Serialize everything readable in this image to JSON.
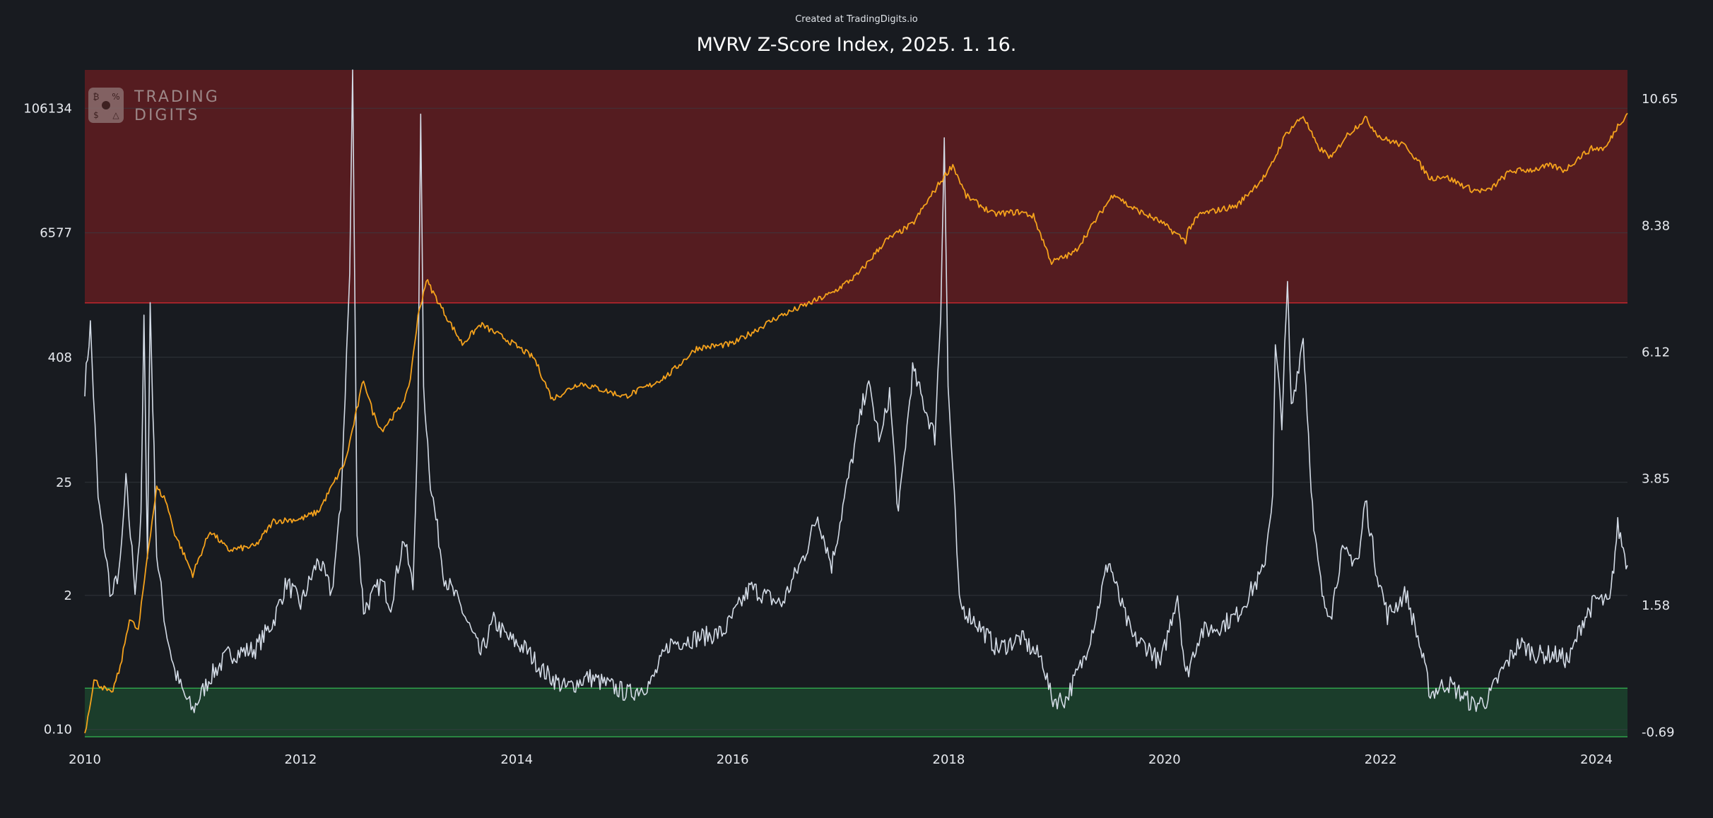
{
  "header": {
    "credit": "Created at TradingDigits.io",
    "title": "MVRV Z-Score Index, 2025. 1. 16."
  },
  "watermark": {
    "line1": "TRADING",
    "line2": "DIGITS",
    "icon_glyphs": [
      "₿",
      "%",
      "$",
      "△"
    ]
  },
  "colors": {
    "background": "#181b20",
    "price_line": "#f5a21c",
    "zscore_line": "#d3dbe6",
    "overvalued_zone": "#551c20",
    "overvalued_border": "#c2262d",
    "undervalued_zone": "#1b3d2b",
    "undervalued_border": "#2fa24a",
    "grid": "#3a3e45"
  },
  "chart_data": {
    "type": "line",
    "x_range": [
      "2010-01-01",
      "2024-04-15"
    ],
    "x_ticks": [
      "2010",
      "2012",
      "2014",
      "2016",
      "2018",
      "2020",
      "2022",
      "2024"
    ],
    "y_left": {
      "scale": "log",
      "ticks": [
        "106134",
        "6577",
        "408",
        "25",
        "2",
        "0.10"
      ],
      "tick_values": [
        106134,
        6577,
        408,
        25,
        2,
        0.1
      ],
      "range": [
        0.085,
        250000
      ]
    },
    "y_right": {
      "scale": "linear",
      "ticks": [
        "10.65",
        "8.38",
        "6.12",
        "3.85",
        "1.58",
        "-0.69"
      ],
      "tick_values": [
        10.65,
        8.38,
        6.12,
        3.85,
        1.58,
        -0.69
      ],
      "range": [
        -0.77,
        11.17
      ]
    },
    "zones": [
      {
        "axis": "right",
        "from": 7.0,
        "to": 11.17,
        "label": "overvalued"
      },
      {
        "axis": "right",
        "from": -0.77,
        "to": 0.1,
        "label": "undervalued"
      }
    ],
    "series": [
      {
        "axis": "left",
        "color": "#f5a21c",
        "points": [
          [
            "2010-01-01",
            0.09
          ],
          [
            "2010-02-01",
            0.3
          ],
          [
            "2010-04-01",
            0.22
          ],
          [
            "2010-05-01",
            0.4
          ],
          [
            "2010-06-01",
            1.2
          ],
          [
            "2010-07-01",
            0.9
          ],
          [
            "2010-08-01",
            5
          ],
          [
            "2010-09-01",
            22
          ],
          [
            "2010-10-01",
            17
          ],
          [
            "2010-11-01",
            8
          ],
          [
            "2011-01-01",
            3.2
          ],
          [
            "2011-03-01",
            8.5
          ],
          [
            "2011-05-01",
            5.5
          ],
          [
            "2011-08-01",
            6
          ],
          [
            "2011-10-01",
            10.5
          ],
          [
            "2012-01-01",
            11
          ],
          [
            "2012-03-01",
            13
          ],
          [
            "2012-06-01",
            40
          ],
          [
            "2012-08-01",
            250
          ],
          [
            "2012-09-01",
            120
          ],
          [
            "2012-10-01",
            80
          ],
          [
            "2012-12-01",
            130
          ],
          [
            "2013-01-01",
            200
          ],
          [
            "2013-02-01",
            1000
          ],
          [
            "2013-03-01",
            2300
          ],
          [
            "2013-05-01",
            1100
          ],
          [
            "2013-07-01",
            550
          ],
          [
            "2013-09-01",
            850
          ],
          [
            "2013-12-01",
            600
          ],
          [
            "2014-03-01",
            400
          ],
          [
            "2014-05-01",
            160
          ],
          [
            "2014-08-01",
            230
          ],
          [
            "2015-01-01",
            170
          ],
          [
            "2015-04-01",
            220
          ],
          [
            "2015-06-01",
            280
          ],
          [
            "2015-09-01",
            500
          ],
          [
            "2016-01-01",
            550
          ],
          [
            "2016-06-01",
            1000
          ],
          [
            "2016-09-01",
            1300
          ],
          [
            "2016-12-01",
            1700
          ],
          [
            "2017-03-01",
            2600
          ],
          [
            "2017-06-01",
            5500
          ],
          [
            "2017-09-01",
            8000
          ],
          [
            "2017-12-01",
            20000
          ],
          [
            "2018-01-15",
            30000
          ],
          [
            "2018-03-01",
            15000
          ],
          [
            "2018-06-01",
            10000
          ],
          [
            "2018-09-01",
            10500
          ],
          [
            "2018-10-15",
            9500
          ],
          [
            "2018-12-15",
            3400
          ],
          [
            "2019-03-01",
            4200
          ],
          [
            "2019-06-01",
            10500
          ],
          [
            "2019-07-15",
            16000
          ],
          [
            "2019-09-01",
            12000
          ],
          [
            "2019-12-15",
            8500
          ],
          [
            "2020-03-12",
            5500
          ],
          [
            "2020-03-20",
            7000
          ],
          [
            "2020-05-01",
            10000
          ],
          [
            "2020-09-01",
            12000
          ],
          [
            "2020-12-15",
            25000
          ],
          [
            "2021-02-15",
            60000
          ],
          [
            "2021-04-14",
            90000
          ],
          [
            "2021-06-01",
            45000
          ],
          [
            "2021-07-20",
            35000
          ],
          [
            "2021-09-01",
            55000
          ],
          [
            "2021-11-10",
            85000
          ],
          [
            "2022-01-01",
            55000
          ],
          [
            "2022-04-01",
            45000
          ],
          [
            "2022-06-18",
            22000
          ],
          [
            "2022-08-01",
            23500
          ],
          [
            "2022-11-10",
            17000
          ],
          [
            "2023-01-01",
            16800
          ],
          [
            "2023-03-15",
            26000
          ],
          [
            "2023-06-01",
            27000
          ],
          [
            "2023-08-01",
            29500
          ],
          [
            "2023-09-15",
            26500
          ],
          [
            "2023-11-01",
            35000
          ],
          [
            "2023-12-15",
            43000
          ],
          [
            "2024-02-01",
            43500
          ],
          [
            "2024-03-13",
            72000
          ],
          [
            "2024-04-15",
            95000
          ]
        ]
      },
      {
        "axis": "right",
        "color": "#d3dbe6",
        "points": [
          [
            "2010-01-01",
            5.5
          ],
          [
            "2010-01-20",
            6.6
          ],
          [
            "2010-02-15",
            3.5
          ],
          [
            "2010-04-01",
            1.7
          ],
          [
            "2010-05-01",
            2.3
          ],
          [
            "2010-05-20",
            3.8
          ],
          [
            "2010-06-20",
            1.9
          ],
          [
            "2010-07-10",
            3.1
          ],
          [
            "2010-07-20",
            6.7
          ],
          [
            "2010-08-01",
            2.5
          ],
          [
            "2010-08-10",
            7.0
          ],
          [
            "2010-09-01",
            2.5
          ],
          [
            "2010-10-01",
            1.2
          ],
          [
            "2010-11-01",
            0.4
          ],
          [
            "2010-12-01",
            0.0
          ],
          [
            "2011-01-01",
            -0.3
          ],
          [
            "2011-03-01",
            0.3
          ],
          [
            "2011-05-01",
            0.7
          ],
          [
            "2011-08-01",
            0.8
          ],
          [
            "2011-10-01",
            1.3
          ],
          [
            "2011-11-15",
            2.0
          ],
          [
            "2012-01-01",
            1.6
          ],
          [
            "2012-03-01",
            2.4
          ],
          [
            "2012-04-15",
            1.8
          ],
          [
            "2012-05-15",
            3.3
          ],
          [
            "2012-06-15",
            7.5
          ],
          [
            "2012-06-25",
            11.2
          ],
          [
            "2012-07-10",
            3.0
          ],
          [
            "2012-08-01",
            1.5
          ],
          [
            "2012-10-01",
            2.0
          ],
          [
            "2012-11-01",
            1.6
          ],
          [
            "2012-12-15",
            2.8
          ],
          [
            "2013-01-15",
            1.9
          ],
          [
            "2013-02-01",
            5.0
          ],
          [
            "2013-02-10",
            10.5
          ],
          [
            "2013-02-20",
            5.5
          ],
          [
            "2013-03-15",
            3.8
          ],
          [
            "2013-05-01",
            2.1
          ],
          [
            "2013-07-01",
            1.5
          ],
          [
            "2013-09-01",
            0.7
          ],
          [
            "2013-10-15",
            1.3
          ],
          [
            "2013-12-01",
            1.0
          ],
          [
            "2014-02-01",
            0.8
          ],
          [
            "2014-04-01",
            0.4
          ],
          [
            "2014-06-15",
            0.1
          ],
          [
            "2014-09-01",
            0.3
          ],
          [
            "2015-01-15",
            0.0
          ],
          [
            "2015-04-01",
            0.2
          ],
          [
            "2015-06-01",
            0.9
          ],
          [
            "2015-09-01",
            1.0
          ],
          [
            "2015-12-01",
            1.1
          ],
          [
            "2016-03-01",
            1.9
          ],
          [
            "2016-06-15",
            1.6
          ],
          [
            "2016-09-01",
            2.5
          ],
          [
            "2016-10-15",
            3.2
          ],
          [
            "2016-12-01",
            2.3
          ],
          [
            "2017-02-01",
            4.0
          ],
          [
            "2017-04-01",
            5.6
          ],
          [
            "2017-05-15",
            4.5
          ],
          [
            "2017-06-15",
            5.4
          ],
          [
            "2017-07-15",
            3.2
          ],
          [
            "2017-09-01",
            5.8
          ],
          [
            "2017-11-15",
            4.6
          ],
          [
            "2017-12-05",
            6.8
          ],
          [
            "2017-12-17",
            10.0
          ],
          [
            "2017-12-30",
            5.5
          ],
          [
            "2018-01-20",
            3.5
          ],
          [
            "2018-02-06",
            1.6
          ],
          [
            "2018-04-01",
            1.3
          ],
          [
            "2018-06-15",
            0.8
          ],
          [
            "2018-09-01",
            1.0
          ],
          [
            "2018-11-15",
            0.6
          ],
          [
            "2018-12-15",
            -0.1
          ],
          [
            "2019-02-01",
            -0.1
          ],
          [
            "2019-04-01",
            0.6
          ],
          [
            "2019-05-15",
            1.4
          ],
          [
            "2019-06-26",
            2.4
          ],
          [
            "2019-08-01",
            1.7
          ],
          [
            "2019-09-15",
            1.0
          ],
          [
            "2019-11-15",
            0.8
          ],
          [
            "2019-12-18",
            0.5
          ],
          [
            "2020-02-14",
            1.8
          ],
          [
            "2020-03-13",
            0.3
          ],
          [
            "2020-05-01",
            1.1
          ],
          [
            "2020-07-01",
            1.2
          ],
          [
            "2020-09-01",
            1.4
          ],
          [
            "2020-10-15",
            1.8
          ],
          [
            "2020-12-01",
            2.2
          ],
          [
            "2021-01-01",
            3.6
          ],
          [
            "2021-01-10",
            6.2
          ],
          [
            "2021-02-01",
            4.9
          ],
          [
            "2021-02-20",
            7.3
          ],
          [
            "2021-03-05",
            5.1
          ],
          [
            "2021-04-14",
            6.4
          ],
          [
            "2021-05-20",
            2.9
          ],
          [
            "2021-06-22",
            1.6
          ],
          [
            "2021-07-20",
            1.5
          ],
          [
            "2021-08-20",
            2.5
          ],
          [
            "2021-10-20",
            2.4
          ],
          [
            "2021-11-10",
            3.5
          ],
          [
            "2021-12-15",
            2.3
          ],
          [
            "2022-01-24",
            1.4
          ],
          [
            "2022-03-28",
            1.8
          ],
          [
            "2022-05-12",
            0.9
          ],
          [
            "2022-06-18",
            0.0
          ],
          [
            "2022-08-15",
            0.2
          ],
          [
            "2022-11-10",
            -0.2
          ],
          [
            "2022-12-30",
            -0.1
          ],
          [
            "2023-02-15",
            0.4
          ],
          [
            "2023-04-14",
            0.9
          ],
          [
            "2023-06-15",
            0.7
          ],
          [
            "2023-08-15",
            0.7
          ],
          [
            "2023-10-01",
            0.6
          ],
          [
            "2023-11-15",
            1.3
          ],
          [
            "2023-12-31",
            1.7
          ],
          [
            "2024-02-15",
            1.6
          ],
          [
            "2024-03-13",
            3.0
          ],
          [
            "2024-04-15",
            2.3
          ]
        ]
      }
    ]
  }
}
